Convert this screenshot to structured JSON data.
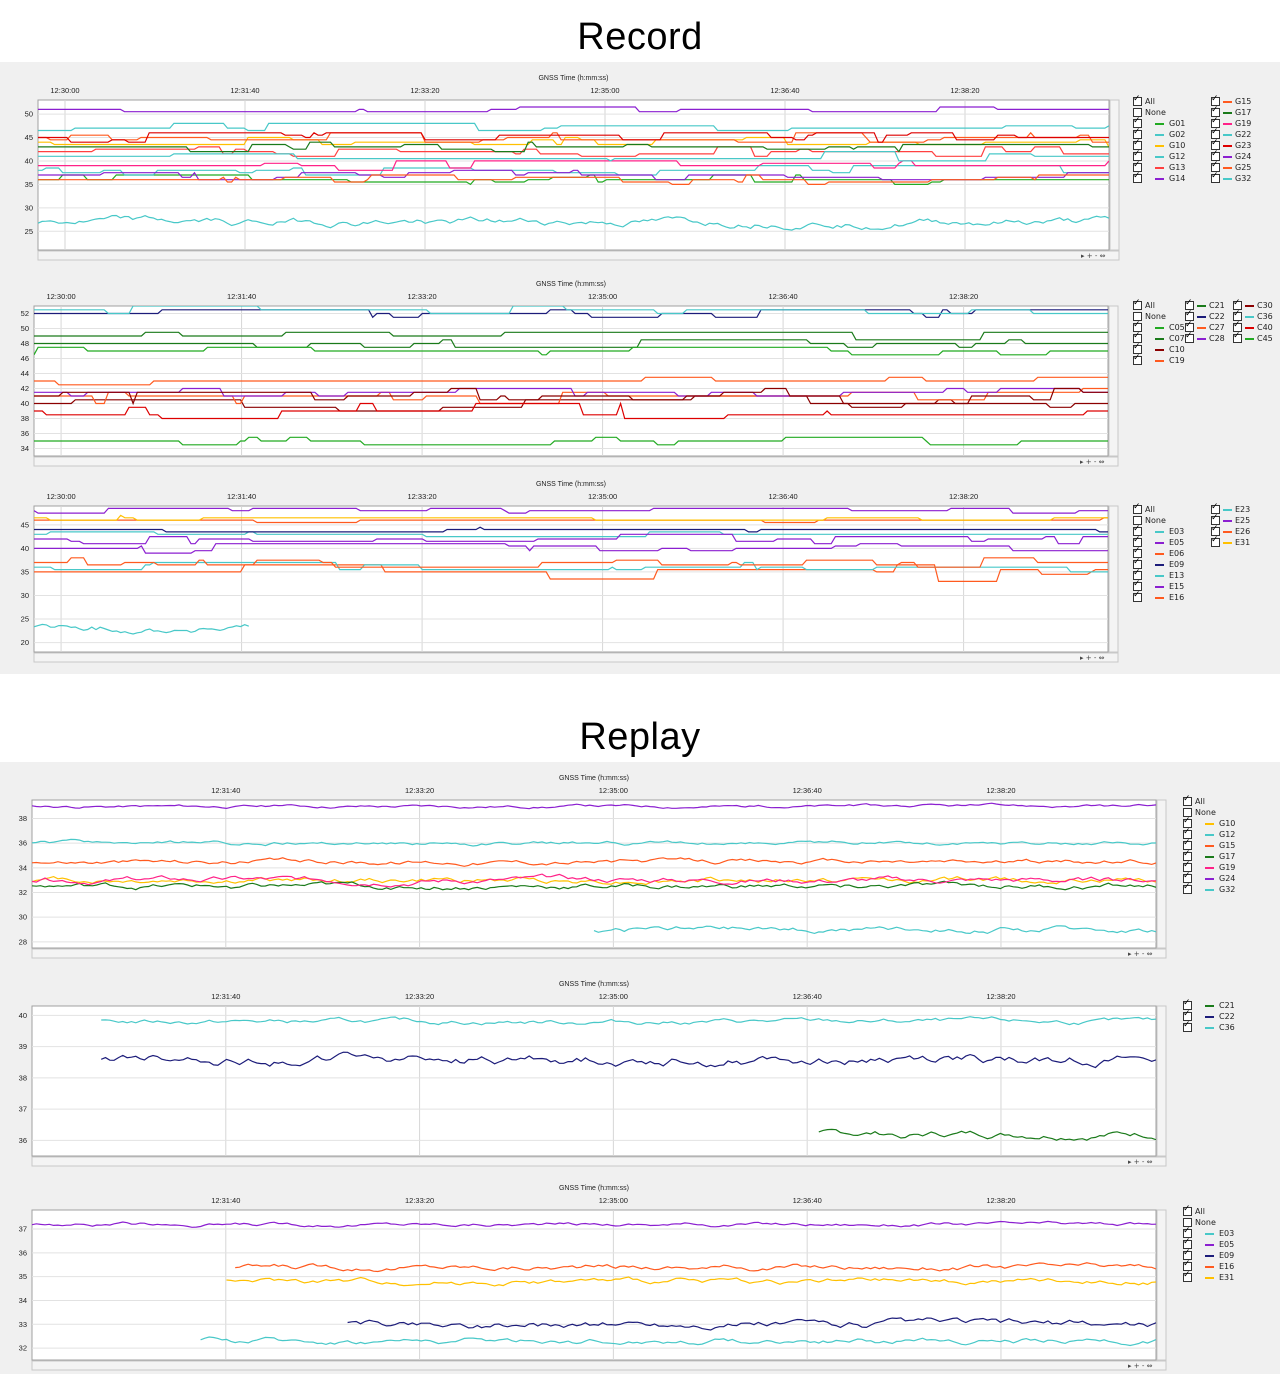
{
  "titles": {
    "record": "Record",
    "replay": "Replay"
  },
  "axis_title": "GNSS Time (h:mm:ss)",
  "legend_all": "All",
  "legend_none": "None",
  "chart_data": [
    {
      "id": "rec-gps",
      "type": "line",
      "title": "GNSS Time (h:mm:ss)",
      "xticks": [
        "12:30:00",
        "12:31:40",
        "12:33:20",
        "12:35:00",
        "12:36:40",
        "12:38:20"
      ],
      "xlim": [
        "12:29:45",
        "12:39:40"
      ],
      "yticks": [
        25,
        30,
        35,
        40,
        45,
        50
      ],
      "ylim": [
        21,
        53
      ],
      "show_all_none": true,
      "series": [
        {
          "name": "G01",
          "color": "#22aa22",
          "base": 36,
          "jitter": 1,
          "style": "step"
        },
        {
          "name": "G02",
          "color": "#48c8c8",
          "base": 38,
          "jitter": 1,
          "style": "step"
        },
        {
          "name": "G10",
          "color": "#ffc000",
          "base": 44,
          "jitter": 1,
          "style": "step"
        },
        {
          "name": "G12",
          "color": "#48c8c8",
          "base": 47,
          "jitter": 1,
          "style": "step"
        },
        {
          "name": "G13",
          "color": "#ff4040",
          "base": 42,
          "jitter": 1,
          "style": "step"
        },
        {
          "name": "G14",
          "color": "#8b1fd0",
          "base": 51,
          "jitter": 0.5,
          "style": "step"
        },
        {
          "name": "G15",
          "color": "#ff5a1f",
          "base": 45,
          "jitter": 1,
          "style": "step"
        },
        {
          "name": "G17",
          "color": "#1a7a1a",
          "base": 43,
          "jitter": 1,
          "style": "step"
        },
        {
          "name": "G19",
          "color": "#ff2288",
          "base": 39,
          "jitter": 1,
          "style": "step"
        },
        {
          "name": "G22",
          "color": "#48c8c8",
          "base": 41,
          "jitter": 1,
          "style": "step"
        },
        {
          "name": "G23",
          "color": "#dd0000",
          "base": 45,
          "jitter": 1,
          "style": "step"
        },
        {
          "name": "G24",
          "color": "#8b1fd0",
          "base": 37,
          "jitter": 1,
          "style": "step"
        },
        {
          "name": "G25",
          "color": "#ff5a1f",
          "base": 36,
          "jitter": 1,
          "style": "step"
        },
        {
          "name": "G32",
          "color": "#48c8c8",
          "base": 27,
          "jitter": 2,
          "style": "noise"
        }
      ]
    },
    {
      "id": "rec-bds",
      "type": "line",
      "title": "GNSS Time (h:mm:ss)",
      "xticks": [
        "12:30:00",
        "12:31:40",
        "12:33:20",
        "12:35:00",
        "12:36:40",
        "12:38:20"
      ],
      "xlim": [
        "12:29:45",
        "12:39:40"
      ],
      "yticks": [
        34,
        36,
        38,
        40,
        42,
        44,
        46,
        48,
        50,
        52
      ],
      "ylim": [
        33,
        53
      ],
      "show_all_none": true,
      "series": [
        {
          "name": "C05",
          "color": "#22aa22",
          "base": 35,
          "jitter": 0.5,
          "style": "step"
        },
        {
          "name": "C07",
          "color": "#1a7a1a",
          "base": 48,
          "jitter": 0.5,
          "style": "step"
        },
        {
          "name": "C10",
          "color": "#8b0000",
          "base": 40,
          "jitter": 1,
          "style": "step"
        },
        {
          "name": "C19",
          "color": "#ff5a1f",
          "base": 43,
          "jitter": 0.5,
          "style": "step"
        },
        {
          "name": "C21",
          "color": "#1a7a1a",
          "base": 49,
          "jitter": 0.5,
          "style": "step"
        },
        {
          "name": "C22",
          "color": "#1c1c7a",
          "base": 52,
          "jitter": 0.5,
          "style": "step"
        },
        {
          "name": "C27",
          "color": "#ff5a1f",
          "base": 41,
          "jitter": 1,
          "style": "step"
        },
        {
          "name": "C28",
          "color": "#8b1fd0",
          "base": 41.5,
          "jitter": 0.5,
          "style": "step"
        },
        {
          "name": "C30",
          "color": "#8b0000",
          "base": 41,
          "jitter": 1,
          "style": "step"
        },
        {
          "name": "C36",
          "color": "#48c8c8",
          "base": 52.5,
          "jitter": 0.5,
          "style": "step"
        },
        {
          "name": "C40",
          "color": "#dd0000",
          "base": 39,
          "jitter": 1,
          "style": "step"
        },
        {
          "name": "C45",
          "color": "#22aa22",
          "base": 47,
          "jitter": 0.5,
          "style": "step"
        }
      ]
    },
    {
      "id": "rec-gal",
      "type": "line",
      "title": "GNSS Time (h:mm:ss)",
      "xticks": [
        "12:30:00",
        "12:31:40",
        "12:33:20",
        "12:35:00",
        "12:36:40",
        "12:38:20"
      ],
      "xlim": [
        "12:29:45",
        "12:39:40"
      ],
      "yticks": [
        20,
        25,
        30,
        35,
        40,
        45
      ],
      "ylim": [
        18,
        49
      ],
      "show_all_none": true,
      "series": [
        {
          "name": "E03",
          "color": "#48c8c8",
          "base": 43,
          "jitter": 0.5,
          "style": "step"
        },
        {
          "name": "E05",
          "color": "#8b1fd0",
          "base": 40,
          "jitter": 1,
          "style": "step"
        },
        {
          "name": "E06",
          "color": "#ff5a1f",
          "base": 35,
          "jitter": 2,
          "style": "step"
        },
        {
          "name": "E09",
          "color": "#1c1c7a",
          "base": 44,
          "jitter": 0.5,
          "style": "step"
        },
        {
          "name": "E13",
          "color": "#48c8c8",
          "base": 36,
          "jitter": 1,
          "style": "step"
        },
        {
          "name": "E15",
          "color": "#8b1fd0",
          "base": 48,
          "jitter": 0.5,
          "style": "step"
        },
        {
          "name": "E16",
          "color": "#ff5a1f",
          "base": 37,
          "jitter": 1,
          "style": "step"
        },
        {
          "name": "E23",
          "color": "#48c8c8",
          "base": 23,
          "jitter": 2,
          "style": "noise",
          "end": 0.2
        },
        {
          "name": "E25",
          "color": "#8b1fd0",
          "base": 42,
          "jitter": 1,
          "style": "step"
        },
        {
          "name": "E26",
          "color": "#ff5a1f",
          "base": 46,
          "jitter": 0.5,
          "style": "step"
        },
        {
          "name": "E31",
          "color": "#ffc000",
          "base": 46.5,
          "jitter": 0.3,
          "style": "step"
        }
      ]
    },
    {
      "id": "rep-gps",
      "type": "line",
      "title": "GNSS Time (h:mm:ss)",
      "xticks": [
        "12:31:40",
        "12:33:20",
        "12:35:00",
        "12:36:40",
        "12:38:20"
      ],
      "xlim": [
        "12:30:00",
        "12:39:40"
      ],
      "yticks": [
        28,
        30,
        32,
        34,
        36,
        38
      ],
      "ylim": [
        27.5,
        39.5
      ],
      "show_all_none": true,
      "series": [
        {
          "name": "G10",
          "color": "#ffc000",
          "base": 33,
          "jitter": 0.6,
          "style": "noise"
        },
        {
          "name": "G12",
          "color": "#48c8c8",
          "base": 36,
          "jitter": 0.4,
          "style": "noise"
        },
        {
          "name": "G15",
          "color": "#ff5a1f",
          "base": 34.5,
          "jitter": 0.5,
          "style": "noise"
        },
        {
          "name": "G17",
          "color": "#1a7a1a",
          "base": 32.5,
          "jitter": 0.6,
          "style": "noise"
        },
        {
          "name": "G19",
          "color": "#ff2288",
          "base": 33,
          "jitter": 0.6,
          "style": "noise"
        },
        {
          "name": "G24",
          "color": "#8b1fd0",
          "base": 39,
          "jitter": 0.3,
          "style": "noise"
        },
        {
          "name": "G32",
          "color": "#48c8c8",
          "base": 29,
          "jitter": 0.6,
          "style": "noise",
          "start": 0.5
        }
      ]
    },
    {
      "id": "rep-bds",
      "type": "line",
      "title": "GNSS Time (h:mm:ss)",
      "xticks": [
        "12:31:40",
        "12:33:20",
        "12:35:00",
        "12:36:40",
        "12:38:20"
      ],
      "xlim": [
        "12:30:00",
        "12:39:40"
      ],
      "yticks": [
        36,
        37,
        38,
        39,
        40
      ],
      "ylim": [
        35.5,
        40.3
      ],
      "show_all_none": false,
      "series": [
        {
          "name": "C21",
          "color": "#1a7a1a",
          "base": 36.2,
          "jitter": 0.3,
          "style": "noise",
          "start": 0.7
        },
        {
          "name": "C22",
          "color": "#1c1c7a",
          "base": 38.6,
          "jitter": 0.4,
          "style": "noise",
          "start": 0.06
        },
        {
          "name": "C36",
          "color": "#48c8c8",
          "base": 39.8,
          "jitter": 0.2,
          "style": "noise",
          "start": 0.06
        }
      ]
    },
    {
      "id": "rep-gal",
      "type": "line",
      "title": "GNSS Time (h:mm:ss)",
      "xticks": [
        "12:31:40",
        "12:33:20",
        "12:35:00",
        "12:36:40",
        "12:38:20"
      ],
      "xlim": [
        "12:30:00",
        "12:39:40"
      ],
      "yticks": [
        32,
        33,
        34,
        35,
        36,
        37
      ],
      "ylim": [
        31.5,
        37.8
      ],
      "show_all_none": true,
      "series": [
        {
          "name": "E03",
          "color": "#48c8c8",
          "base": 32.3,
          "jitter": 0.3,
          "style": "noise",
          "start": 0.15
        },
        {
          "name": "E05",
          "color": "#8b1fd0",
          "base": 37.2,
          "jitter": 0.2,
          "style": "noise"
        },
        {
          "name": "E09",
          "color": "#1c1c7a",
          "base": 33,
          "jitter": 0.4,
          "style": "noise",
          "start": 0.28
        },
        {
          "name": "E16",
          "color": "#ff5a1f",
          "base": 35.4,
          "jitter": 0.3,
          "style": "noise",
          "start": 0.18
        },
        {
          "name": "E31",
          "color": "#ffc000",
          "base": 34.8,
          "jitter": 0.3,
          "style": "noise",
          "start": 0.17
        }
      ]
    }
  ]
}
